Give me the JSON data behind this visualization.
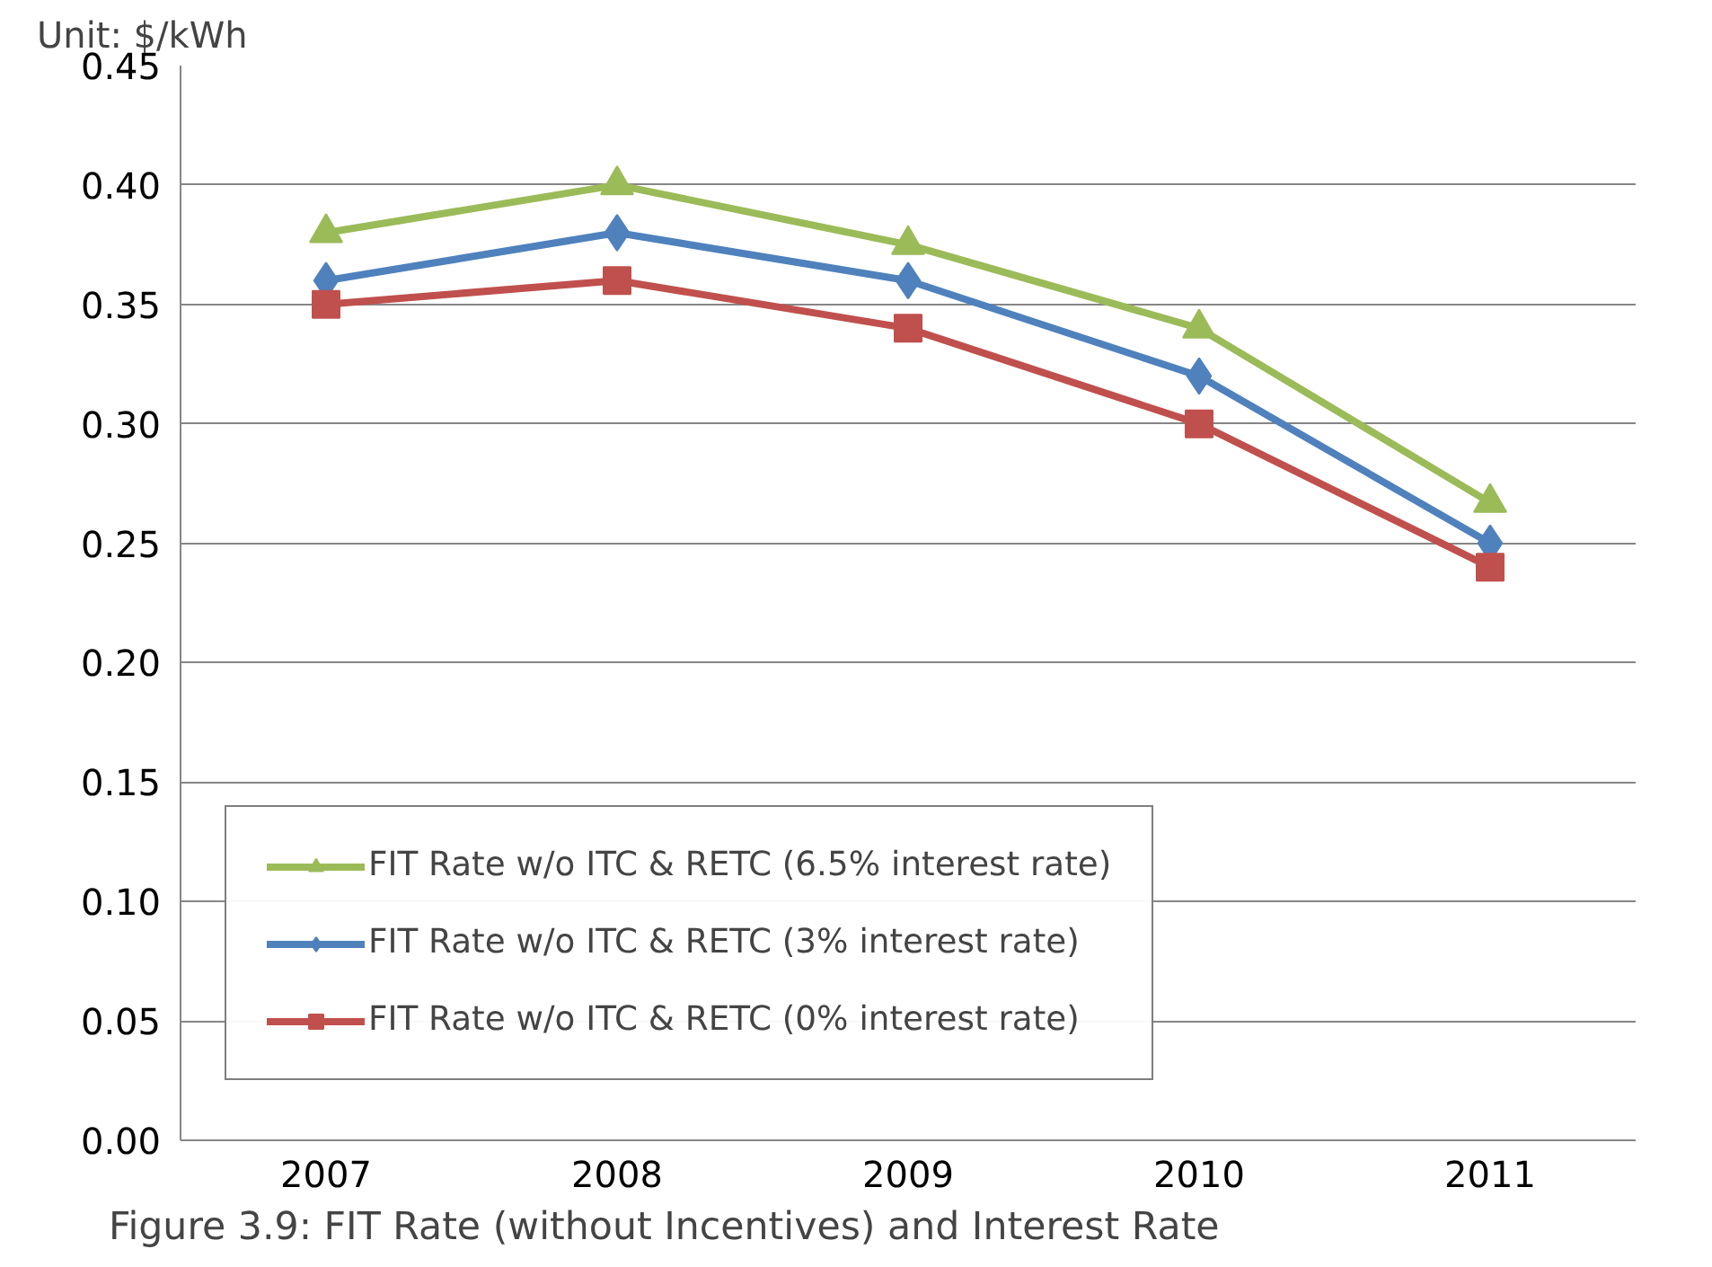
{
  "chart_data": {
    "type": "line",
    "ylabel": "Unit: $/kWh",
    "categories": [
      "2007",
      "2008",
      "2009",
      "2010",
      "2011"
    ],
    "series": [
      {
        "name": "FIT Rate w/o ITC & RETC (6.5% interest rate)",
        "color": "#9bbb59",
        "marker": "triangle",
        "values": [
          0.38,
          0.4,
          0.375,
          0.34,
          0.267
        ]
      },
      {
        "name": "FIT Rate w/o ITC & RETC (3% interest rate)",
        "color": "#4f81bd",
        "marker": "diamond",
        "values": [
          0.36,
          0.38,
          0.36,
          0.32,
          0.25
        ]
      },
      {
        "name": "FIT Rate w/o ITC & RETC (0% interest rate)",
        "color": "#c0504d",
        "marker": "square",
        "values": [
          0.35,
          0.36,
          0.34,
          0.3,
          0.24
        ]
      }
    ],
    "ylim": [
      0,
      0.45
    ],
    "yticks": [
      {
        "value": 0,
        "label": "0.00"
      },
      0.05,
      {
        "value": 0.1,
        "label": "0.10"
      },
      0.15,
      {
        "value": 0.2,
        "label": "0.20"
      },
      0.25,
      {
        "value": 0.3,
        "label": "0.30"
      },
      0.35,
      {
        "value": 0.4,
        "label": "0.40"
      },
      0.45
    ],
    "grid": "y",
    "legend": "bottom left",
    "line_style": "solid",
    "annotations": [
      "Figure 3.9: FIT Rate (without Incentives) and Interest Rate"
    ]
  }
}
